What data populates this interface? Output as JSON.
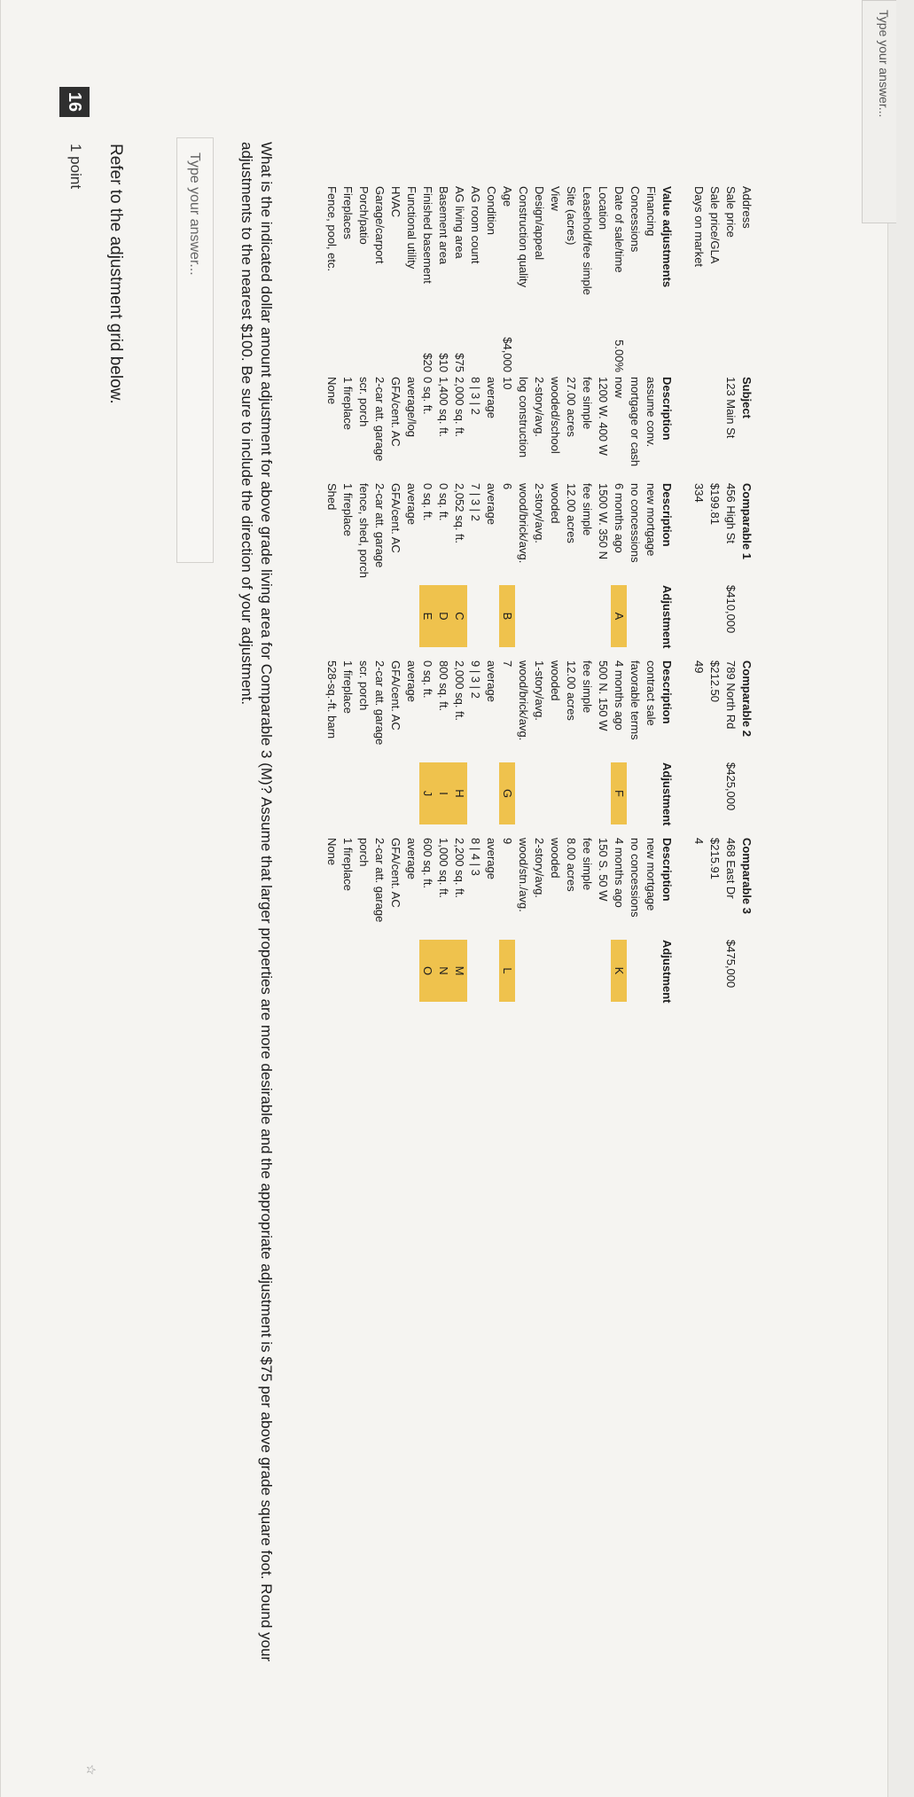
{
  "top_stub": "Type your answer...",
  "question_number": "16",
  "points": "1 point",
  "intro": "Refer to the adjustment grid below.",
  "grid": {
    "labels": [
      "Address",
      "Sale price",
      "Sale price/GLA",
      "Days on market",
      "",
      "Value adjustments",
      "Financing",
      "Concessions",
      "Date of sale/time",
      "Location",
      "Leasehold/fee simple",
      "Site (acres)",
      "View",
      "Design/appeal",
      "Construction quality",
      "Age",
      "Condition",
      "AG room count",
      "AG living area",
      "Basement area",
      "Finished basement",
      "Functional utility",
      "HVAC",
      "Garage/carport",
      "Porch/patio",
      "Fireplaces",
      "Fence, pool, etc."
    ],
    "rates": [
      "",
      "",
      "",
      "",
      "",
      "",
      "",
      "",
      "5.00%",
      "",
      "",
      "",
      "",
      "",
      "",
      "$4,000",
      "",
      "",
      "$75",
      "$10",
      "$20",
      "",
      "",
      "",
      "",
      "",
      ""
    ],
    "subject": [
      "Subject",
      "123 Main St",
      "",
      "",
      "",
      "Description",
      "assume conv.",
      "mortgage or cash",
      "now",
      "1200 W. 400 W",
      "fee simple",
      "27.00 acres",
      "wooded/school",
      "2-story/avg.",
      "log construction",
      "10",
      "average",
      "8 | 3 | 2",
      "2,000 sq. ft.",
      "1,400 sq. ft.",
      "0 sq. ft.",
      "average/log",
      "GFA/cent. AC",
      "2-car att. garage",
      "scr. porch",
      "1 fireplace",
      "None"
    ],
    "comp1": [
      "Comparable 1",
      "456 High St",
      "$199.81",
      "334",
      "",
      "Description",
      "new mortgage",
      "no concessions",
      "6 months ago",
      "1500 W. 350 N",
      "fee simple",
      "12.00 acres",
      "wooded",
      "2-story/avg.",
      "wood/brick/avg.",
      "6",
      "average",
      "7 | 3 | 2",
      "2,052 sq. ft.",
      "0 sq. ft.",
      "0 sq. ft.",
      "average",
      "GFA/cent. AC",
      "2-car att. garage",
      "fence, shed, porch",
      "1 fireplace",
      "Shed"
    ],
    "comp1_price": "$410,000",
    "comp1_adj_header": "Adjustment",
    "comp2": [
      "Comparable 2",
      "789 North Rd",
      "$212.50",
      "49",
      "",
      "Description",
      "contract sale",
      "favorable terms",
      "4 months ago",
      "500 N. 150 W",
      "fee simple",
      "12.00 acres",
      "wooded",
      "1-story/avg.",
      "wood/brick/avg.",
      "7",
      "average",
      "9 | 3 | 2",
      "2,000 sq. ft.",
      "800 sq. ft.",
      "0 sq. ft.",
      "average",
      "GFA/cent. AC",
      "2-car att. garage",
      "scr. porch",
      "1 fireplace",
      "528-sq.-ft. barn"
    ],
    "comp2_price": "$425,000",
    "comp2_adj_header": "Adjustment",
    "comp3": [
      "Comparable 3",
      "468 East Dr",
      "$215.91",
      "4",
      "",
      "Description",
      "new mortgage",
      "no concessions",
      "4 months ago",
      "150 S. 50 W",
      "fee simple",
      "8.00 acres",
      "wooded",
      "2-story/avg.",
      "wood/stn./avg.",
      "9",
      "average",
      "8 | 4 | 3",
      "2,200 sq. ft.",
      "1,000 sq. ft.",
      "600 sq. ft.",
      "average",
      "GFA/cent. AC",
      "2-car att. garage",
      "porch",
      "1 fireplace",
      "None"
    ],
    "comp3_price": "$475,000",
    "comp3_adj_header": "Adjustment",
    "boxes": {
      "A": "A",
      "B": "B",
      "C": "C",
      "D": "D",
      "E": "E",
      "F": "F",
      "G": "G",
      "H": "H",
      "I": "I",
      "J": "J",
      "K": "K",
      "L": "L",
      "M": "M",
      "N": "N",
      "O": "O"
    }
  },
  "question": "What is the indicated dollar amount adjustment for above grade living area for Comparable 3 (M)? Assume that larger properties are more desirable and the appropriate adjustment is $75 per above grade square foot.  Round your adjustments to the nearest $100.  Be sure to include the direction of your adjustment.",
  "answer_placeholder": "Type your answer...",
  "colors": {
    "highlight": "#efc24d",
    "badge": "#2f2f2f"
  }
}
